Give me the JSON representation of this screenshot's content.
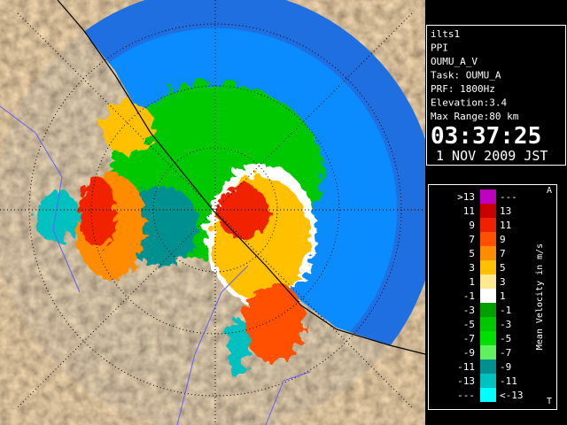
{
  "info": {
    "lines": [
      "ilts1",
      "PPI",
      "OUMU_A_V",
      "Task: OUMU_A",
      "PRF: 1800Hz",
      "Elevation:3.4",
      "Max Range:80 km"
    ],
    "time": "03:37:25",
    "date": "1 NOV 2009 JST"
  },
  "legend": {
    "top_mark": "A",
    "bottom_mark": "T",
    "axis_label": "Mean Velocity in m/s",
    "rows": [
      {
        "low": ">13",
        "high": "---",
        "color": "#c000c0"
      },
      {
        "low": "11",
        "high": "13",
        "color": "#c80000"
      },
      {
        "low": "9",
        "high": "11",
        "color": "#f02000"
      },
      {
        "low": "7",
        "high": "9",
        "color": "#ff5000"
      },
      {
        "low": "5",
        "high": "7",
        "color": "#ff8c00"
      },
      {
        "low": "3",
        "high": "5",
        "color": "#ffc000"
      },
      {
        "low": "1",
        "high": "3",
        "color": "#ffe890"
      },
      {
        "low": "-1",
        "high": "1",
        "color": "#ffffff"
      },
      {
        "low": "-3",
        "high": "-1",
        "color": "#00a000"
      },
      {
        "low": "-5",
        "high": "-3",
        "color": "#00c800"
      },
      {
        "low": "-7",
        "high": "-5",
        "color": "#00e000"
      },
      {
        "low": "-9",
        "high": "-7",
        "color": "#60f060"
      },
      {
        "low": "-11",
        "high": "-9",
        "color": "#009090"
      },
      {
        "low": "-13",
        "high": "-11",
        "color": "#00c0c0"
      },
      {
        "low": "---",
        "high": "<-13",
        "color": "#00ffff"
      }
    ]
  }
}
